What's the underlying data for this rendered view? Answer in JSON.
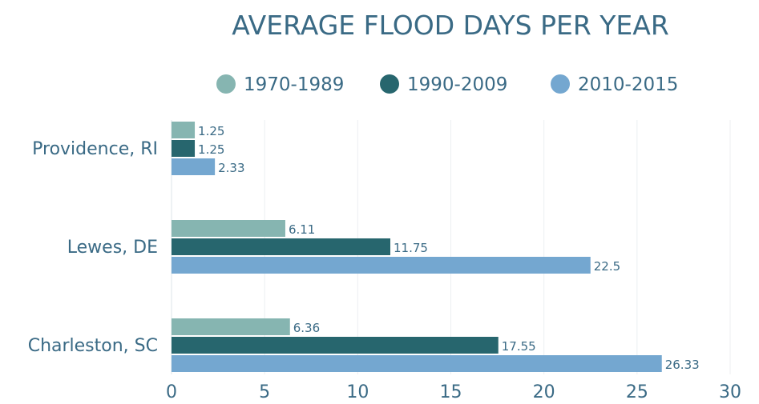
{
  "chart_data": {
    "type": "bar",
    "orientation": "horizontal",
    "title": "AVERAGE FLOOD DAYS PER YEAR",
    "xlabel": "",
    "ylabel": "",
    "xlim": [
      0,
      30
    ],
    "x_ticks": [
      "0",
      "5",
      "10",
      "15",
      "20",
      "25",
      "30"
    ],
    "grid": true,
    "legend_position": "top",
    "categories": [
      "Providence, RI",
      "Lewes, DE",
      "Charleston, SC"
    ],
    "series": [
      {
        "name": "1970-1989",
        "color": "#86b5b1",
        "values": [
          1.25,
          6.11,
          6.36
        ],
        "labels": [
          "1.25",
          "6.11",
          "6.36"
        ]
      },
      {
        "name": "1990-2009",
        "color": "#27666e",
        "values": [
          1.25,
          11.75,
          17.55
        ],
        "labels": [
          "1.25",
          "11.75",
          "17.55"
        ]
      },
      {
        "name": "2010-2015",
        "color": "#74a7d0",
        "values": [
          2.33,
          22.5,
          26.33
        ],
        "labels": [
          "2.33",
          "22.5",
          "26.33"
        ]
      }
    ]
  }
}
